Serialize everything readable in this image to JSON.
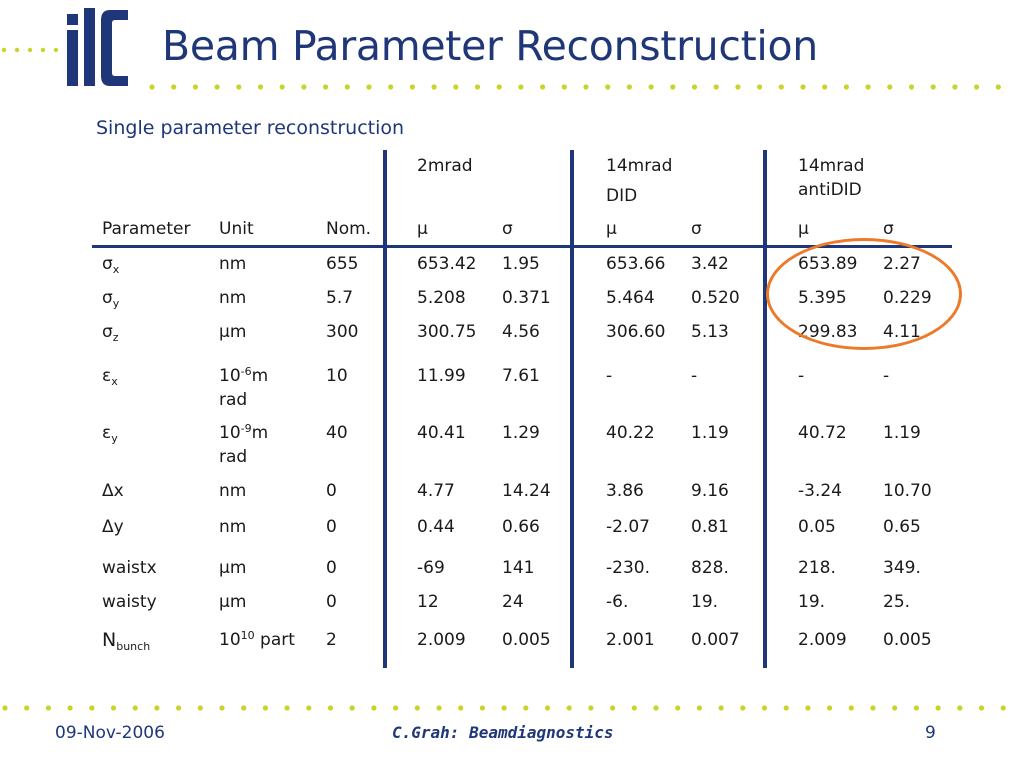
{
  "slide": {
    "title": "Beam Parameter Reconstruction",
    "subtitle": "Single parameter reconstruction",
    "accent_color": "#1f3778",
    "dot_color": "#c8d42a",
    "highlight_color": "#ec7a2a",
    "logo_icon": "ilc-logo"
  },
  "table": {
    "group_headers": [
      {
        "line1": "2mrad",
        "line2": ""
      },
      {
        "line1": "14mrad",
        "line2": "DID"
      },
      {
        "line1": "14mrad",
        "line2": "antiDID"
      }
    ],
    "column_headers": [
      "Parameter",
      "Unit",
      "Nom.",
      "μ",
      "σ",
      "μ",
      "σ",
      "μ",
      "σ"
    ],
    "rows": [
      {
        "param": "σ",
        "param_sub": "x",
        "unit": "nm",
        "unit_sup": "",
        "unit_tail": "",
        "unit_line2": "",
        "nom": "655",
        "values": [
          "653.42",
          "1.95",
          "653.66",
          "3.42",
          "653.89",
          "2.27"
        ]
      },
      {
        "param": "σ",
        "param_sub": "y",
        "unit": "nm",
        "unit_sup": "",
        "unit_tail": "",
        "unit_line2": "",
        "nom": "5.7",
        "values": [
          "5.208",
          "0.371",
          "5.464",
          "0.520",
          "5.395",
          "0.229"
        ]
      },
      {
        "param": "σ",
        "param_sub": "z",
        "unit": "μm",
        "unit_sup": "",
        "unit_tail": "",
        "unit_line2": "",
        "nom": "300",
        "values": [
          "300.75",
          "4.56",
          "306.60",
          "5.13",
          "299.83",
          "4.11"
        ]
      },
      {
        "param": "ε",
        "param_sub": "x",
        "unit": "10",
        "unit_sup": "-6",
        "unit_tail": "m",
        "unit_line2": "rad",
        "nom": "10",
        "values": [
          "11.99",
          "7.61",
          "-",
          "-",
          "-",
          "-"
        ]
      },
      {
        "param": "ε",
        "param_sub": "y",
        "unit": "10",
        "unit_sup": "-9",
        "unit_tail": "m",
        "unit_line2": "rad",
        "nom": "40",
        "values": [
          "40.41",
          "1.29",
          "40.22",
          "1.19",
          "40.72",
          "1.19"
        ]
      },
      {
        "param": "Δx",
        "param_sub": "",
        "unit": "nm",
        "unit_sup": "",
        "unit_tail": "",
        "unit_line2": "",
        "nom": "0",
        "values": [
          "4.77",
          "14.24",
          "3.86",
          "9.16",
          "-3.24",
          "10.70"
        ]
      },
      {
        "param": "Δy",
        "param_sub": "",
        "unit": "nm",
        "unit_sup": "",
        "unit_tail": "",
        "unit_line2": "",
        "nom": "0",
        "values": [
          "0.44",
          "0.66",
          "-2.07",
          "0.81",
          "0.05",
          "0.65"
        ]
      },
      {
        "param": "waistx",
        "param_sub": "",
        "unit": "μm",
        "unit_sup": "",
        "unit_tail": "",
        "unit_line2": "",
        "nom": "0",
        "values": [
          "-69",
          "141",
          "-230.",
          "828.",
          "218.",
          "349."
        ]
      },
      {
        "param": "waisty",
        "param_sub": "",
        "unit": "μm",
        "unit_sup": "",
        "unit_tail": "",
        "unit_line2": "",
        "nom": "0",
        "values": [
          "12",
          "24",
          "-6.",
          "19.",
          "19.",
          "25."
        ]
      },
      {
        "param": "N",
        "param_sub": "bunch",
        "unit": "10",
        "unit_sup": "10",
        "unit_tail": " part",
        "unit_line2": "",
        "nom": "2",
        "values": [
          "2.009",
          "0.005",
          "2.001",
          "0.007",
          "2.009",
          "0.005"
        ]
      }
    ]
  },
  "footer": {
    "date": "09-Nov-2006",
    "center": "C.Grah: Beamdiagnostics",
    "page": "9"
  }
}
